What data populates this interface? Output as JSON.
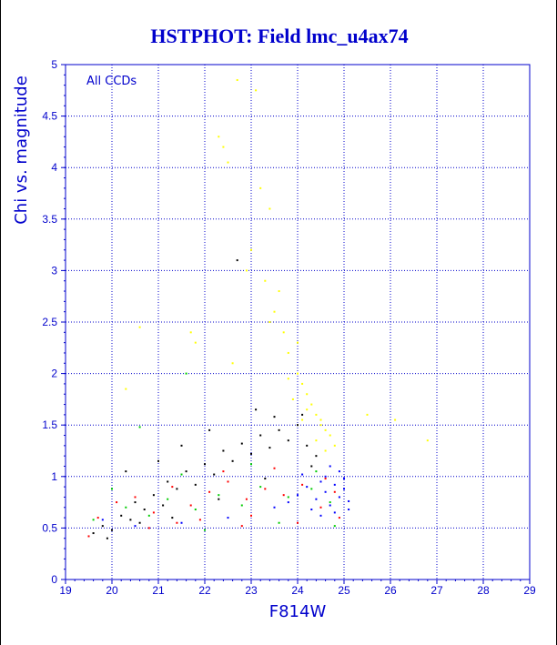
{
  "chart_data": {
    "type": "scatter",
    "title": "HSTPHOT: Field lmc_u4ax74",
    "xlabel": "F814W",
    "ylabel": "Chi vs. magnitude",
    "annotation": "All CCDs",
    "xlim": [
      19,
      29
    ],
    "ylim": [
      0,
      5
    ],
    "xticks": [
      "19",
      "20",
      "21",
      "22",
      "23",
      "24",
      "25",
      "26",
      "27",
      "28",
      "29"
    ],
    "yticks": [
      "0",
      "0.5",
      "1",
      "1.5",
      "2",
      "2.5",
      "3",
      "3.5",
      "4",
      "4.5",
      "5"
    ],
    "grid": true,
    "series": [
      {
        "color": "#000000",
        "points": [
          [
            19.6,
            0.45
          ],
          [
            19.8,
            0.52
          ],
          [
            20.0,
            0.48
          ],
          [
            20.2,
            0.62
          ],
          [
            20.4,
            0.58
          ],
          [
            20.5,
            0.75
          ],
          [
            20.7,
            0.68
          ],
          [
            20.9,
            0.82
          ],
          [
            21.1,
            0.72
          ],
          [
            21.2,
            0.95
          ],
          [
            21.4,
            0.88
          ],
          [
            21.6,
            1.05
          ],
          [
            21.8,
            0.92
          ],
          [
            22.0,
            1.12
          ],
          [
            22.2,
            1.02
          ],
          [
            22.4,
            1.25
          ],
          [
            22.6,
            1.15
          ],
          [
            22.8,
            1.32
          ],
          [
            23.0,
            1.22
          ],
          [
            23.2,
            1.4
          ],
          [
            23.4,
            1.28
          ],
          [
            23.6,
            1.45
          ],
          [
            23.8,
            1.35
          ],
          [
            24.0,
            1.5
          ],
          [
            24.2,
            1.3
          ],
          [
            24.4,
            1.2
          ],
          [
            20.3,
            1.05
          ],
          [
            21.0,
            1.15
          ],
          [
            21.5,
            1.3
          ],
          [
            22.1,
            1.45
          ],
          [
            22.7,
            3.1
          ],
          [
            23.1,
            1.65
          ],
          [
            23.5,
            1.58
          ],
          [
            24.1,
            1.6
          ],
          [
            19.9,
            0.4
          ],
          [
            20.6,
            0.55
          ],
          [
            21.3,
            0.6
          ],
          [
            22.3,
            0.78
          ],
          [
            23.3,
            0.98
          ],
          [
            24.3,
            1.1
          ]
        ]
      },
      {
        "color": "#ff0000",
        "points": [
          [
            19.7,
            0.6
          ],
          [
            20.1,
            0.75
          ],
          [
            20.5,
            0.8
          ],
          [
            20.9,
            0.65
          ],
          [
            21.3,
            0.9
          ],
          [
            21.7,
            0.72
          ],
          [
            22.1,
            0.85
          ],
          [
            22.5,
            0.95
          ],
          [
            22.9,
            0.78
          ],
          [
            23.3,
            0.88
          ],
          [
            23.7,
            0.82
          ],
          [
            24.1,
            0.92
          ],
          [
            24.5,
            0.7
          ],
          [
            24.8,
            0.85
          ],
          [
            19.5,
            0.42
          ],
          [
            20.8,
            0.5
          ],
          [
            21.9,
            0.58
          ],
          [
            23.0,
            0.62
          ],
          [
            24.0,
            0.55
          ],
          [
            24.9,
            0.6
          ],
          [
            22.4,
            1.05
          ],
          [
            23.5,
            1.08
          ],
          [
            24.6,
            0.98
          ],
          [
            21.4,
            0.55
          ],
          [
            22.8,
            0.52
          ]
        ]
      },
      {
        "color": "#00cc00",
        "points": [
          [
            19.6,
            0.58
          ],
          [
            20.3,
            0.7
          ],
          [
            20.8,
            0.62
          ],
          [
            21.2,
            0.78
          ],
          [
            21.8,
            0.68
          ],
          [
            22.3,
            0.82
          ],
          [
            22.8,
            0.72
          ],
          [
            23.2,
            0.9
          ],
          [
            23.8,
            0.8
          ],
          [
            24.3,
            0.88
          ],
          [
            24.7,
            0.75
          ],
          [
            20.0,
            0.88
          ],
          [
            21.5,
            1.02
          ],
          [
            23.0,
            1.12
          ],
          [
            24.4,
            1.05
          ],
          [
            20.6,
            1.48
          ],
          [
            21.6,
            2.0
          ],
          [
            22.0,
            0.48
          ],
          [
            23.6,
            0.55
          ],
          [
            24.8,
            0.52
          ]
        ]
      },
      {
        "color": "#0000ff",
        "points": [
          [
            23.8,
            0.75
          ],
          [
            24.0,
            0.82
          ],
          [
            24.2,
            0.9
          ],
          [
            24.4,
            0.78
          ],
          [
            24.5,
            0.95
          ],
          [
            24.6,
            0.85
          ],
          [
            24.7,
            0.72
          ],
          [
            24.8,
            0.92
          ],
          [
            24.9,
            0.8
          ],
          [
            25.0,
            0.88
          ],
          [
            25.1,
            0.76
          ],
          [
            24.3,
            0.68
          ],
          [
            24.6,
            1.0
          ],
          [
            24.8,
            0.65
          ],
          [
            25.0,
            0.98
          ],
          [
            24.1,
            1.02
          ],
          [
            24.9,
            1.05
          ],
          [
            24.5,
            0.62
          ],
          [
            23.5,
            0.7
          ],
          [
            22.5,
            0.6
          ],
          [
            21.5,
            0.55
          ],
          [
            20.5,
            0.52
          ],
          [
            19.8,
            0.58
          ],
          [
            24.7,
            1.1
          ],
          [
            25.1,
            0.68
          ]
        ]
      },
      {
        "color": "#ffff00",
        "points": [
          [
            22.3,
            4.3
          ],
          [
            22.4,
            4.2
          ],
          [
            22.5,
            4.05
          ],
          [
            22.7,
            4.85
          ],
          [
            23.1,
            4.75
          ],
          [
            23.2,
            3.8
          ],
          [
            23.4,
            3.6
          ],
          [
            23.0,
            3.2
          ],
          [
            23.3,
            2.9
          ],
          [
            23.5,
            2.6
          ],
          [
            23.7,
            2.4
          ],
          [
            23.8,
            2.2
          ],
          [
            24.0,
            2.0
          ],
          [
            24.1,
            1.9
          ],
          [
            24.2,
            1.8
          ],
          [
            24.3,
            1.7
          ],
          [
            24.4,
            1.6
          ],
          [
            24.5,
            1.55
          ],
          [
            24.6,
            1.45
          ],
          [
            24.7,
            1.4
          ],
          [
            24.8,
            1.3
          ],
          [
            23.9,
            1.75
          ],
          [
            24.2,
            1.65
          ],
          [
            24.5,
            1.5
          ],
          [
            22.9,
            3.0
          ],
          [
            23.6,
            2.8
          ],
          [
            24.0,
            2.3
          ],
          [
            22.6,
            2.1
          ],
          [
            25.5,
            1.6
          ],
          [
            26.1,
            1.55
          ],
          [
            26.8,
            1.35
          ],
          [
            21.7,
            2.4
          ],
          [
            20.6,
            2.45
          ],
          [
            20.3,
            1.85
          ],
          [
            21.8,
            2.3
          ],
          [
            23.4,
            2.5
          ],
          [
            24.1,
            1.55
          ],
          [
            24.4,
            1.35
          ],
          [
            23.8,
            1.95
          ],
          [
            24.6,
            1.25
          ]
        ]
      }
    ]
  }
}
